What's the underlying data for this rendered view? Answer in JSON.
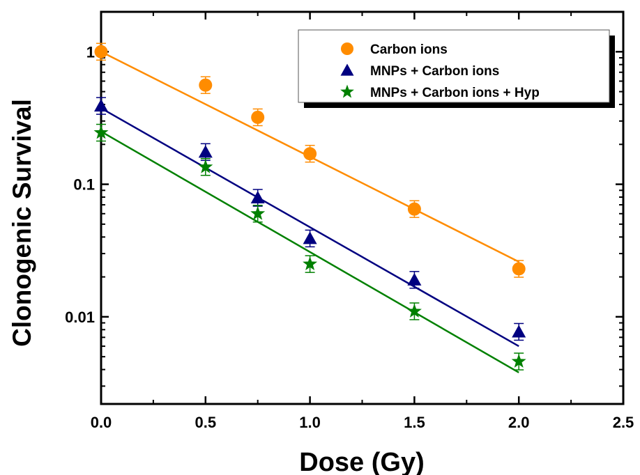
{
  "chart_data": {
    "type": "scatter",
    "xlabel": "Dose (Gy)",
    "ylabel": "Clonogenic Survival",
    "xlim": [
      0,
      2.5
    ],
    "ylim": [
      0.0022,
      2
    ],
    "yscale": "log",
    "xticks": [
      "0.0",
      "0.5",
      "1.0",
      "1.5",
      "2.0",
      "2.5"
    ],
    "xtick_values": [
      0,
      0.5,
      1.0,
      1.5,
      2.0,
      2.5
    ],
    "yticks": [
      "1",
      "0.1",
      "0.01"
    ],
    "ytick_values": [
      1,
      0.1,
      0.01
    ],
    "legend_position": "top-right",
    "series": [
      {
        "name": "Carbon ions",
        "marker": "circle",
        "color": "#FF8C00",
        "x": [
          0,
          0.5,
          0.75,
          1.0,
          1.5,
          2.0
        ],
        "y": [
          1.0,
          0.56,
          0.32,
          0.17,
          0.065,
          0.023
        ],
        "fit": {
          "x": [
            0,
            2.0
          ],
          "y": [
            1.0,
            0.026
          ]
        }
      },
      {
        "name": "MNPs + Carbon ions",
        "marker": "triangle",
        "color": "#000080",
        "x": [
          0,
          0.5,
          0.75,
          1.0,
          1.5,
          2.0
        ],
        "y": [
          0.39,
          0.175,
          0.079,
          0.039,
          0.019,
          0.0077
        ],
        "fit": {
          "x": [
            0,
            2.0
          ],
          "y": [
            0.375,
            0.006
          ]
        }
      },
      {
        "name": "MNPs + Carbon ions + Hyp",
        "marker": "star",
        "color": "#008000",
        "x": [
          0,
          0.5,
          0.75,
          1.0,
          1.5,
          2.0
        ],
        "y": [
          0.245,
          0.135,
          0.06,
          0.025,
          0.011,
          0.0046
        ],
        "fit": {
          "x": [
            0,
            2.0
          ],
          "y": [
            0.25,
            0.0038
          ]
        }
      }
    ]
  }
}
